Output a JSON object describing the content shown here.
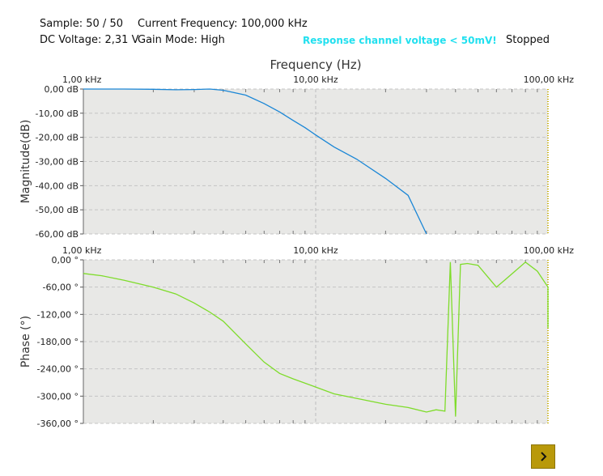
{
  "status": {
    "sample": "Sample: 50 / 50",
    "current_frequency": "Current Frequency: 100,000 kHz",
    "dc_voltage": "DC Voltage: 2,31 V",
    "gain_mode": "Gain Mode: High",
    "warning": "Response channel voltage < 50mV!",
    "state": "Stopped"
  },
  "colors": {
    "magnitude_line": "#1a86d6",
    "phase_line": "#7edc2a",
    "plot_bg": "#e8e8e6",
    "warning": "#22e0ef",
    "button": "#b9990a"
  },
  "next_button": {
    "icon": "chevron-right-icon"
  },
  "chart_data": [
    {
      "type": "line",
      "title": "Frequency (Hz)",
      "xlabel": "Frequency (Hz)",
      "ylabel": "Magnitude(dB)",
      "x_scale": "log",
      "xlim": [
        1000,
        100000
      ],
      "ylim": [
        -60,
        0
      ],
      "x_ticks": [
        1000,
        10000,
        100000
      ],
      "x_tick_labels": [
        "1,00 kHz",
        "10,00 kHz",
        "100,00 kHz"
      ],
      "y_ticks": [
        0,
        -10,
        -20,
        -30,
        -40,
        -50,
        -60
      ],
      "y_tick_labels": [
        "0,00 dB",
        "-10,00 dB",
        "-20,00 dB",
        "-30,00 dB",
        "-40,00 dB",
        "-50,00 dB",
        "-60,00 dB"
      ],
      "grid": true,
      "series": [
        {
          "x": [
            1000,
            1500,
            2000,
            2500,
            3000,
            3500,
            4000,
            5000,
            6000,
            7000,
            8000,
            9000,
            10000,
            12000,
            15000,
            20000,
            25000,
            30000
          ],
          "y": [
            0,
            0,
            -0.1,
            -0.3,
            -0.2,
            0,
            -0.5,
            -2.5,
            -6,
            -9.5,
            -13,
            -16,
            -19,
            -24,
            -29,
            -37,
            -44,
            -60
          ]
        }
      ]
    },
    {
      "type": "line",
      "xlabel": "",
      "ylabel": "Phase (°)",
      "x_scale": "log",
      "xlim": [
        1000,
        100000
      ],
      "ylim": [
        -360,
        0
      ],
      "x_ticks": [
        1000,
        10000,
        100000
      ],
      "x_tick_labels": [
        "1,00 kHz",
        "10,00 kHz",
        "100,00 kHz"
      ],
      "y_ticks": [
        0,
        -60,
        -120,
        -180,
        -240,
        -300,
        -360
      ],
      "y_tick_labels": [
        "0,00 °",
        "-60,00 °",
        "-120,00 °",
        "-180,00 °",
        "-240,00 °",
        "-300,00 °",
        "-360,00 °"
      ],
      "grid": true,
      "series": [
        {
          "x": [
            1000,
            1200,
            1500,
            2000,
            2500,
            3000,
            3500,
            4000,
            5000,
            6000,
            7000,
            8000,
            10000,
            12000,
            15000,
            20000,
            25000,
            30000,
            33000,
            36000,
            38000,
            40000,
            42000,
            45000,
            50000,
            60000,
            65000,
            80000,
            90000,
            100000,
            110000,
            120000
          ],
          "y": [
            -30,
            -35,
            -45,
            -60,
            -75,
            -95,
            -115,
            -135,
            -185,
            -225,
            -250,
            -262,
            -280,
            -295,
            -305,
            -318,
            -325,
            -335,
            -330,
            -333,
            -5,
            -345,
            -10,
            -8,
            -12,
            -60,
            -45,
            -5,
            -25,
            -60,
            -115,
            -150
          ]
        }
      ]
    }
  ]
}
